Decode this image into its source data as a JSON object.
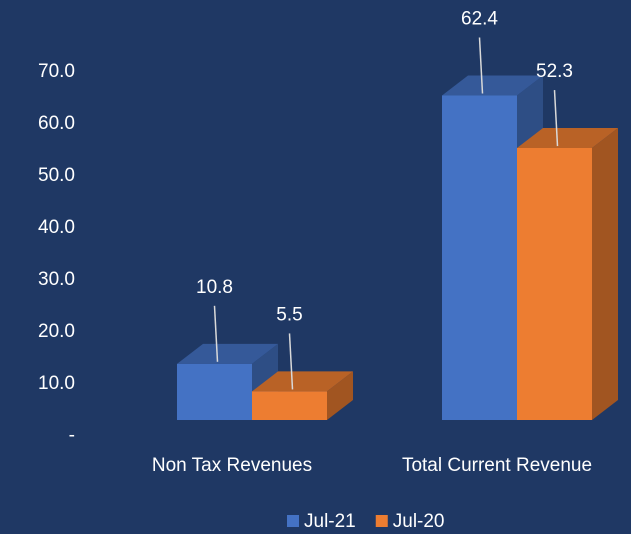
{
  "chart_data": {
    "type": "bar3d",
    "categories": [
      "Non Tax Revenues",
      "Total Current Revenue"
    ],
    "series": [
      {
        "name": "Jul-21",
        "color": "#4472c4",
        "values": [
          10.8,
          62.4
        ]
      },
      {
        "name": "Jul-20",
        "color": "#ed7d31",
        "values": [
          5.5,
          52.3
        ]
      }
    ],
    "ylim": [
      0,
      80
    ],
    "yticks": [
      {
        "value": 0,
        "label": "-"
      },
      {
        "value": 10,
        "label": "10.0"
      },
      {
        "value": 20,
        "label": "20.0"
      },
      {
        "value": 30,
        "label": "30.0"
      },
      {
        "value": 40,
        "label": "40.0"
      },
      {
        "value": 50,
        "label": "50.0"
      },
      {
        "value": 60,
        "label": "60.0"
      },
      {
        "value": 70,
        "label": "70.0"
      }
    ],
    "legend": "bottom"
  }
}
